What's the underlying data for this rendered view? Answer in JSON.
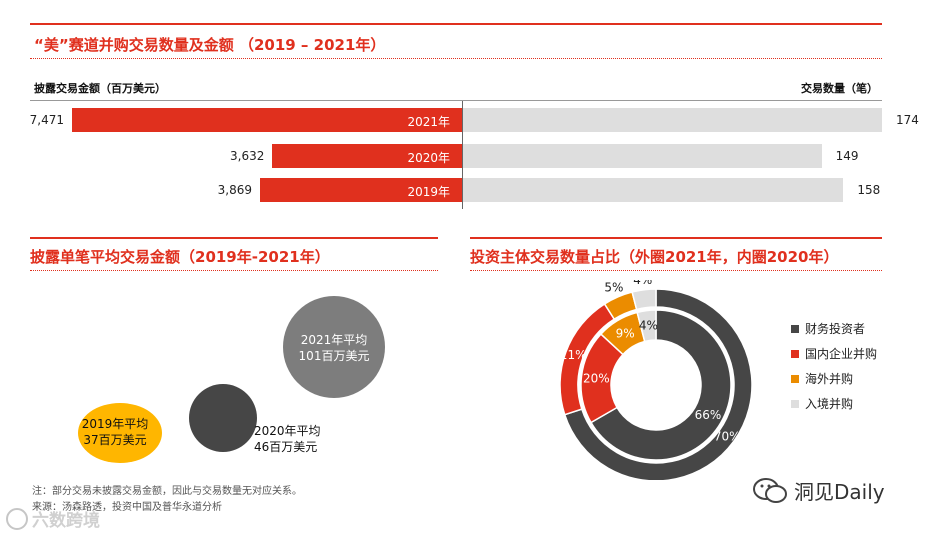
{
  "chart_data": [
    {
      "type": "bar",
      "title": "“美”赛道并购交易数量及金额 （2019 – 2021年）",
      "left_axis_label": "披露交易金额（百万美元）",
      "right_axis_label": "交易数量（笔）",
      "categories": [
        "2021年",
        "2020年",
        "2019年"
      ],
      "series": [
        {
          "name": "披露交易金额（百万美元）",
          "values": [
            7471,
            3632,
            3869
          ],
          "labels": [
            "7,471",
            "3,632",
            "3,869"
          ],
          "color": "#e0301e"
        },
        {
          "name": "交易数量（笔）",
          "values": [
            174,
            149,
            158
          ],
          "labels": [
            "174",
            "149",
            "158"
          ],
          "color": "#dedede"
        }
      ]
    },
    {
      "type": "scatter",
      "title": "披露单笔平均交易金额（2019年-2021年）",
      "points": [
        {
          "year_label": "2019年平均",
          "value_label": "37百万美元",
          "value": 37,
          "color": "#ffb600"
        },
        {
          "year_label": "2020年平均",
          "value_label": "46百万美元",
          "value": 46,
          "color": "#464646"
        },
        {
          "year_label": "2021年平均",
          "value_label": "101百万美元",
          "value": 101,
          "color": "#7d7d7d"
        }
      ]
    },
    {
      "type": "pie",
      "title": "投资主体交易数量占比（外圈2021年，内圈2020年）",
      "categories": [
        "财务投资者",
        "国内企业并购",
        "海外并购",
        "入境并购"
      ],
      "colors": [
        "#464646",
        "#e0301e",
        "#eb8c00",
        "#dedede"
      ],
      "series": [
        {
          "name": "外圈2021年",
          "values": [
            70,
            21,
            5,
            4
          ]
        },
        {
          "name": "内圈2020年",
          "values": [
            66,
            20,
            9,
            4
          ]
        }
      ]
    }
  ],
  "notes": {
    "note": "注：部分交易未披露交易金额，因此与交易数量无对应关系。",
    "source": "来源：汤森路透，投资中国及普华永道分析"
  },
  "watermarks": {
    "left": "六数跨境",
    "right": "洞见Daily"
  }
}
